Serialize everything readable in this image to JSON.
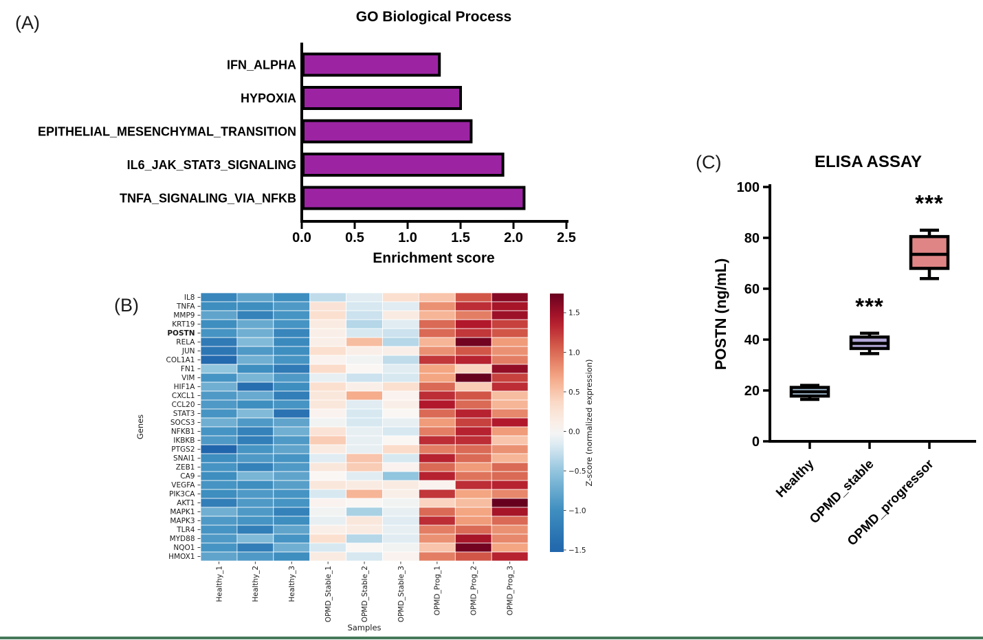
{
  "figure": {
    "panel_tags": {
      "a": "(A)",
      "b": "(B)",
      "c": "(C)"
    },
    "bottom_rule_color": "#45795a"
  },
  "chart_data": [
    {
      "id": "go-bar-chart",
      "type": "bar",
      "orientation": "horizontal",
      "title": "GO Biological Process",
      "xlabel": "Enrichment score",
      "categories": [
        "IFN_ALPHA",
        "HYPOXIA",
        "EPITHELIAL_MESENCHYMAL_TRANSITION",
        "IL6_JAK_STAT3_SIGNALING",
        "TNFA_SIGNALING_VIA_NFKB"
      ],
      "values": [
        1.3,
        1.5,
        1.6,
        1.9,
        2.1
      ],
      "xlim": [
        0,
        2.5
      ],
      "xticks": [
        0.0,
        0.5,
        1.0,
        1.5,
        2.0,
        2.5
      ],
      "bar_color": "#9c24a3",
      "bar_border_color": "#000000",
      "grid": false
    },
    {
      "id": "expression-heatmap",
      "type": "heatmap",
      "xlabel": "Samples",
      "ylabel": "Genes",
      "colorbar_label": "Z-score (normalized expression)",
      "colorbar_ticks": [
        1.5,
        1.0,
        0.5,
        0.0,
        -0.5,
        -1.0,
        -1.5
      ],
      "colorbar_tick_labels": [
        "1.5",
        "1.0",
        "0.5",
        "0.0",
        "−0.5",
        "−1.0",
        "−1.5"
      ],
      "vmin": -1.526,
      "vmax": 1.743,
      "highlight_gene": "POSTN",
      "highlight_color": "#fe0000",
      "colormap_stops": [
        [
          -1.5,
          "#2166ac"
        ],
        [
          -1.0,
          "#3e8ec0"
        ],
        [
          -0.5,
          "#92c5de"
        ],
        [
          -0.2,
          "#d7e8f1"
        ],
        [
          0.0,
          "#f9f6f4"
        ],
        [
          0.35,
          "#fbdcca"
        ],
        [
          0.7,
          "#f4a582"
        ],
        [
          1.05,
          "#d6604d"
        ],
        [
          1.4,
          "#b2182b"
        ],
        [
          1.75,
          "#67001f"
        ]
      ],
      "genes": [
        "IL8",
        "TNFA",
        "MMP9",
        "KRT19",
        "POSTN",
        "RELA",
        "JUN",
        "COL1A1",
        "FN1",
        "VIM",
        "HIF1A",
        "CXCL1",
        "CCL20",
        "STAT3",
        "SOCS3",
        "NFKB1",
        "IKBKB",
        "PTGS2",
        "SNAI1",
        "ZEB1",
        "CA9",
        "VEGFA",
        "PIK3CA",
        "AKT1",
        "MAPK1",
        "MAPK3",
        "TLR4",
        "MYD88",
        "NQO1",
        "HMOX1"
      ],
      "samples": [
        "Healthy_1",
        "Healthy_2",
        "Healthy_3",
        "OPMD_Stable_1",
        "OPMD_Stable_2",
        "OPMD_Stable_3",
        "OPMD_Prog_1",
        "OPMD_Prog_2",
        "OPMD_Prog_3"
      ],
      "values": [
        [
          -1.1,
          -0.8,
          -1.0,
          -0.3,
          -0.15,
          0.3,
          0.5,
          1.1,
          1.6
        ],
        [
          -1.0,
          -1.0,
          -0.9,
          0.25,
          -0.2,
          -0.15,
          0.8,
          1.3,
          1.45
        ],
        [
          -0.8,
          -1.15,
          -0.95,
          0.3,
          -0.25,
          0.15,
          0.6,
          0.9,
          1.5
        ],
        [
          -1.0,
          -0.75,
          -0.95,
          0.15,
          -0.35,
          -0.15,
          1.0,
          1.4,
          1.2
        ],
        [
          -0.95,
          -0.7,
          -1.1,
          0.1,
          -0.2,
          -0.25,
          1.0,
          1.25,
          1.1
        ],
        [
          -1.25,
          -0.6,
          -1.05,
          0.1,
          0.55,
          -0.35,
          0.6,
          1.7,
          0.75
        ],
        [
          -1.3,
          -0.9,
          -1.0,
          0.3,
          0.1,
          0.1,
          0.8,
          1.1,
          0.8
        ],
        [
          -1.45,
          -0.7,
          -0.95,
          0.05,
          -0.05,
          -0.3,
          1.25,
          1.35,
          0.9
        ],
        [
          -0.5,
          -1.0,
          -1.25,
          0.35,
          0.0,
          -0.15,
          0.7,
          0.4,
          1.55
        ],
        [
          -0.95,
          -0.65,
          -0.9,
          -0.1,
          -0.25,
          -0.2,
          0.7,
          1.75,
          1.2
        ],
        [
          -0.7,
          -1.4,
          -1.0,
          0.3,
          0.1,
          0.3,
          1.0,
          0.45,
          1.3
        ],
        [
          -0.9,
          -0.75,
          -1.2,
          0.2,
          0.65,
          0.05,
          1.3,
          1.1,
          0.55
        ],
        [
          -0.9,
          -1.0,
          -0.95,
          0.2,
          -0.15,
          0.1,
          1.4,
          1.0,
          0.6
        ],
        [
          -0.95,
          -0.6,
          -1.35,
          0.05,
          -0.2,
          0.0,
          1.0,
          1.35,
          0.85
        ],
        [
          -0.7,
          -0.9,
          -0.8,
          -0.05,
          -0.2,
          -0.1,
          0.75,
          1.2,
          1.4
        ],
        [
          -0.95,
          -1.15,
          -0.7,
          0.25,
          -0.1,
          -0.2,
          0.9,
          1.35,
          0.75
        ],
        [
          -0.9,
          -1.2,
          -0.9,
          0.45,
          -0.1,
          0.0,
          1.3,
          1.3,
          0.5
        ],
        [
          -1.5,
          -0.95,
          -0.8,
          0.15,
          -0.1,
          0.35,
          0.9,
          1.0,
          0.8
        ],
        [
          -1.0,
          -0.9,
          -0.95,
          -0.15,
          0.5,
          -0.2,
          1.35,
          1.0,
          0.6
        ],
        [
          -0.95,
          -1.15,
          -0.9,
          0.2,
          0.45,
          0.05,
          1.0,
          0.75,
          1.0
        ],
        [
          -1.0,
          -0.65,
          -0.8,
          0.0,
          -0.15,
          -0.5,
          1.35,
          0.95,
          1.0
        ],
        [
          -0.95,
          -1.0,
          -0.85,
          0.2,
          0.15,
          0.15,
          0.05,
          1.3,
          1.35
        ],
        [
          -1.0,
          -0.9,
          -0.95,
          -0.2,
          0.6,
          0.1,
          1.25,
          0.7,
          0.85
        ],
        [
          -1.2,
          -0.9,
          -0.95,
          0.05,
          0.0,
          -0.05,
          0.4,
          0.55,
          1.75
        ],
        [
          -0.7,
          -0.9,
          -1.15,
          -0.05,
          -0.4,
          -0.1,
          1.0,
          0.7,
          1.45
        ],
        [
          -0.9,
          -0.95,
          -1.0,
          -0.1,
          0.2,
          -0.15,
          1.3,
          0.75,
          1.0
        ],
        [
          -0.95,
          -1.2,
          -0.8,
          0.1,
          0.15,
          -0.1,
          0.9,
          1.0,
          0.8
        ],
        [
          -0.9,
          -0.6,
          -0.95,
          0.3,
          -0.35,
          -0.15,
          0.8,
          1.45,
          0.85
        ],
        [
          -0.95,
          -1.2,
          -0.7,
          -0.2,
          0.0,
          -0.05,
          0.5,
          1.7,
          0.7
        ],
        [
          -0.8,
          -0.9,
          -1.0,
          0.15,
          -0.2,
          0.05,
          0.9,
          1.1,
          1.35
        ]
      ]
    },
    {
      "id": "elisa-boxplot",
      "type": "box",
      "title": "ELISA ASSAY",
      "ylabel": "POSTN (ng/mL)",
      "ylim": [
        0,
        100
      ],
      "yticks": [
        0,
        20,
        40,
        60,
        80,
        100
      ],
      "groups": [
        {
          "label": "Healthy",
          "whislo": 16.5,
          "q1": 17.8,
          "med": 19.5,
          "q3": 21.2,
          "whishi": 22.0,
          "fill": "#a3bfd4",
          "annotation": ""
        },
        {
          "label": "OPMD_stable",
          "whislo": 34.5,
          "q1": 36.5,
          "med": 38.5,
          "q3": 41.0,
          "whishi": 42.5,
          "fill": "#b3a8d8",
          "annotation": "***"
        },
        {
          "label": "OPMD_progressor",
          "whislo": 64.0,
          "q1": 68.0,
          "med": 73.5,
          "q3": 80.5,
          "whishi": 83.0,
          "fill": "#e08585",
          "annotation": "***"
        }
      ]
    }
  ]
}
